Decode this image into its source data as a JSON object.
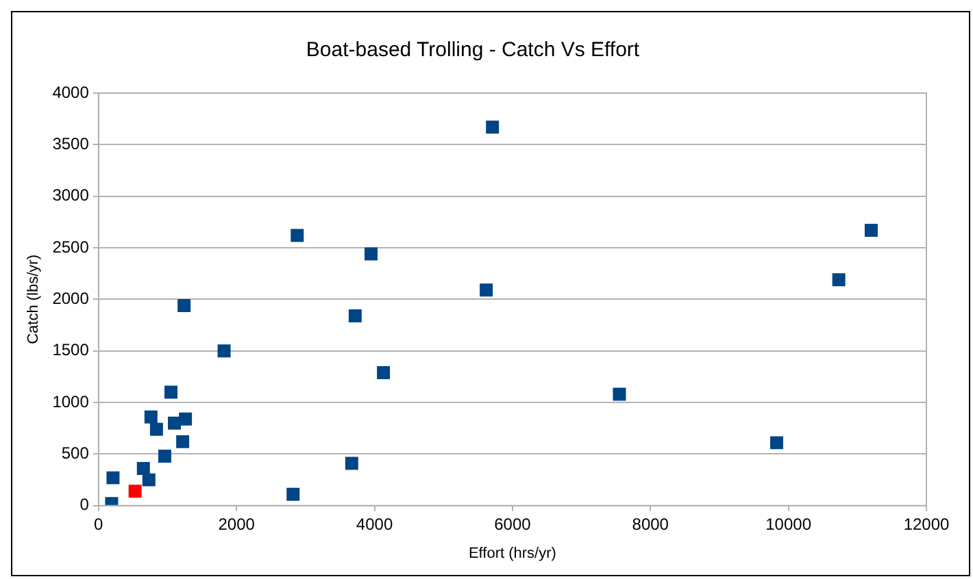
{
  "chart_data": {
    "type": "scatter",
    "title": "Boat-based Trolling - Catch Vs Effort",
    "xlabel": "Effort (hrs/yr)",
    "ylabel": "Catch (lbs/yr)",
    "x": [
      5710,
      2880,
      3950,
      5620,
      11200,
      10730,
      1240,
      3720,
      1820,
      4130,
      7550,
      1050,
      760,
      840,
      1100,
      1260,
      1220,
      960,
      650,
      730,
      210,
      190,
      530,
      2820,
      3670,
      9830
    ],
    "values": [
      3670,
      2620,
      2440,
      2090,
      2670,
      2190,
      1940,
      1840,
      1500,
      1290,
      1080,
      1100,
      860,
      740,
      800,
      840,
      620,
      480,
      360,
      250,
      270,
      20,
      140,
      110,
      410,
      610
    ],
    "colors": [
      "#004586",
      "#004586",
      "#004586",
      "#004586",
      "#004586",
      "#004586",
      "#004586",
      "#004586",
      "#004586",
      "#004586",
      "#004586",
      "#004586",
      "#004586",
      "#004586",
      "#004586",
      "#004586",
      "#004586",
      "#004586",
      "#004586",
      "#004586",
      "#004586",
      "#004586",
      "#ff0000",
      "#004586",
      "#004586",
      "#004586"
    ],
    "xlim": [
      0,
      12000
    ],
    "xticks": [
      0,
      2000,
      4000,
      6000,
      8000,
      10000,
      12000
    ],
    "ylim": [
      0,
      4000
    ],
    "yticks": [
      0,
      500,
      1000,
      1500,
      2000,
      2500,
      3000,
      3500,
      4000
    ],
    "grid": "y",
    "marker": "square",
    "legend": false
  }
}
